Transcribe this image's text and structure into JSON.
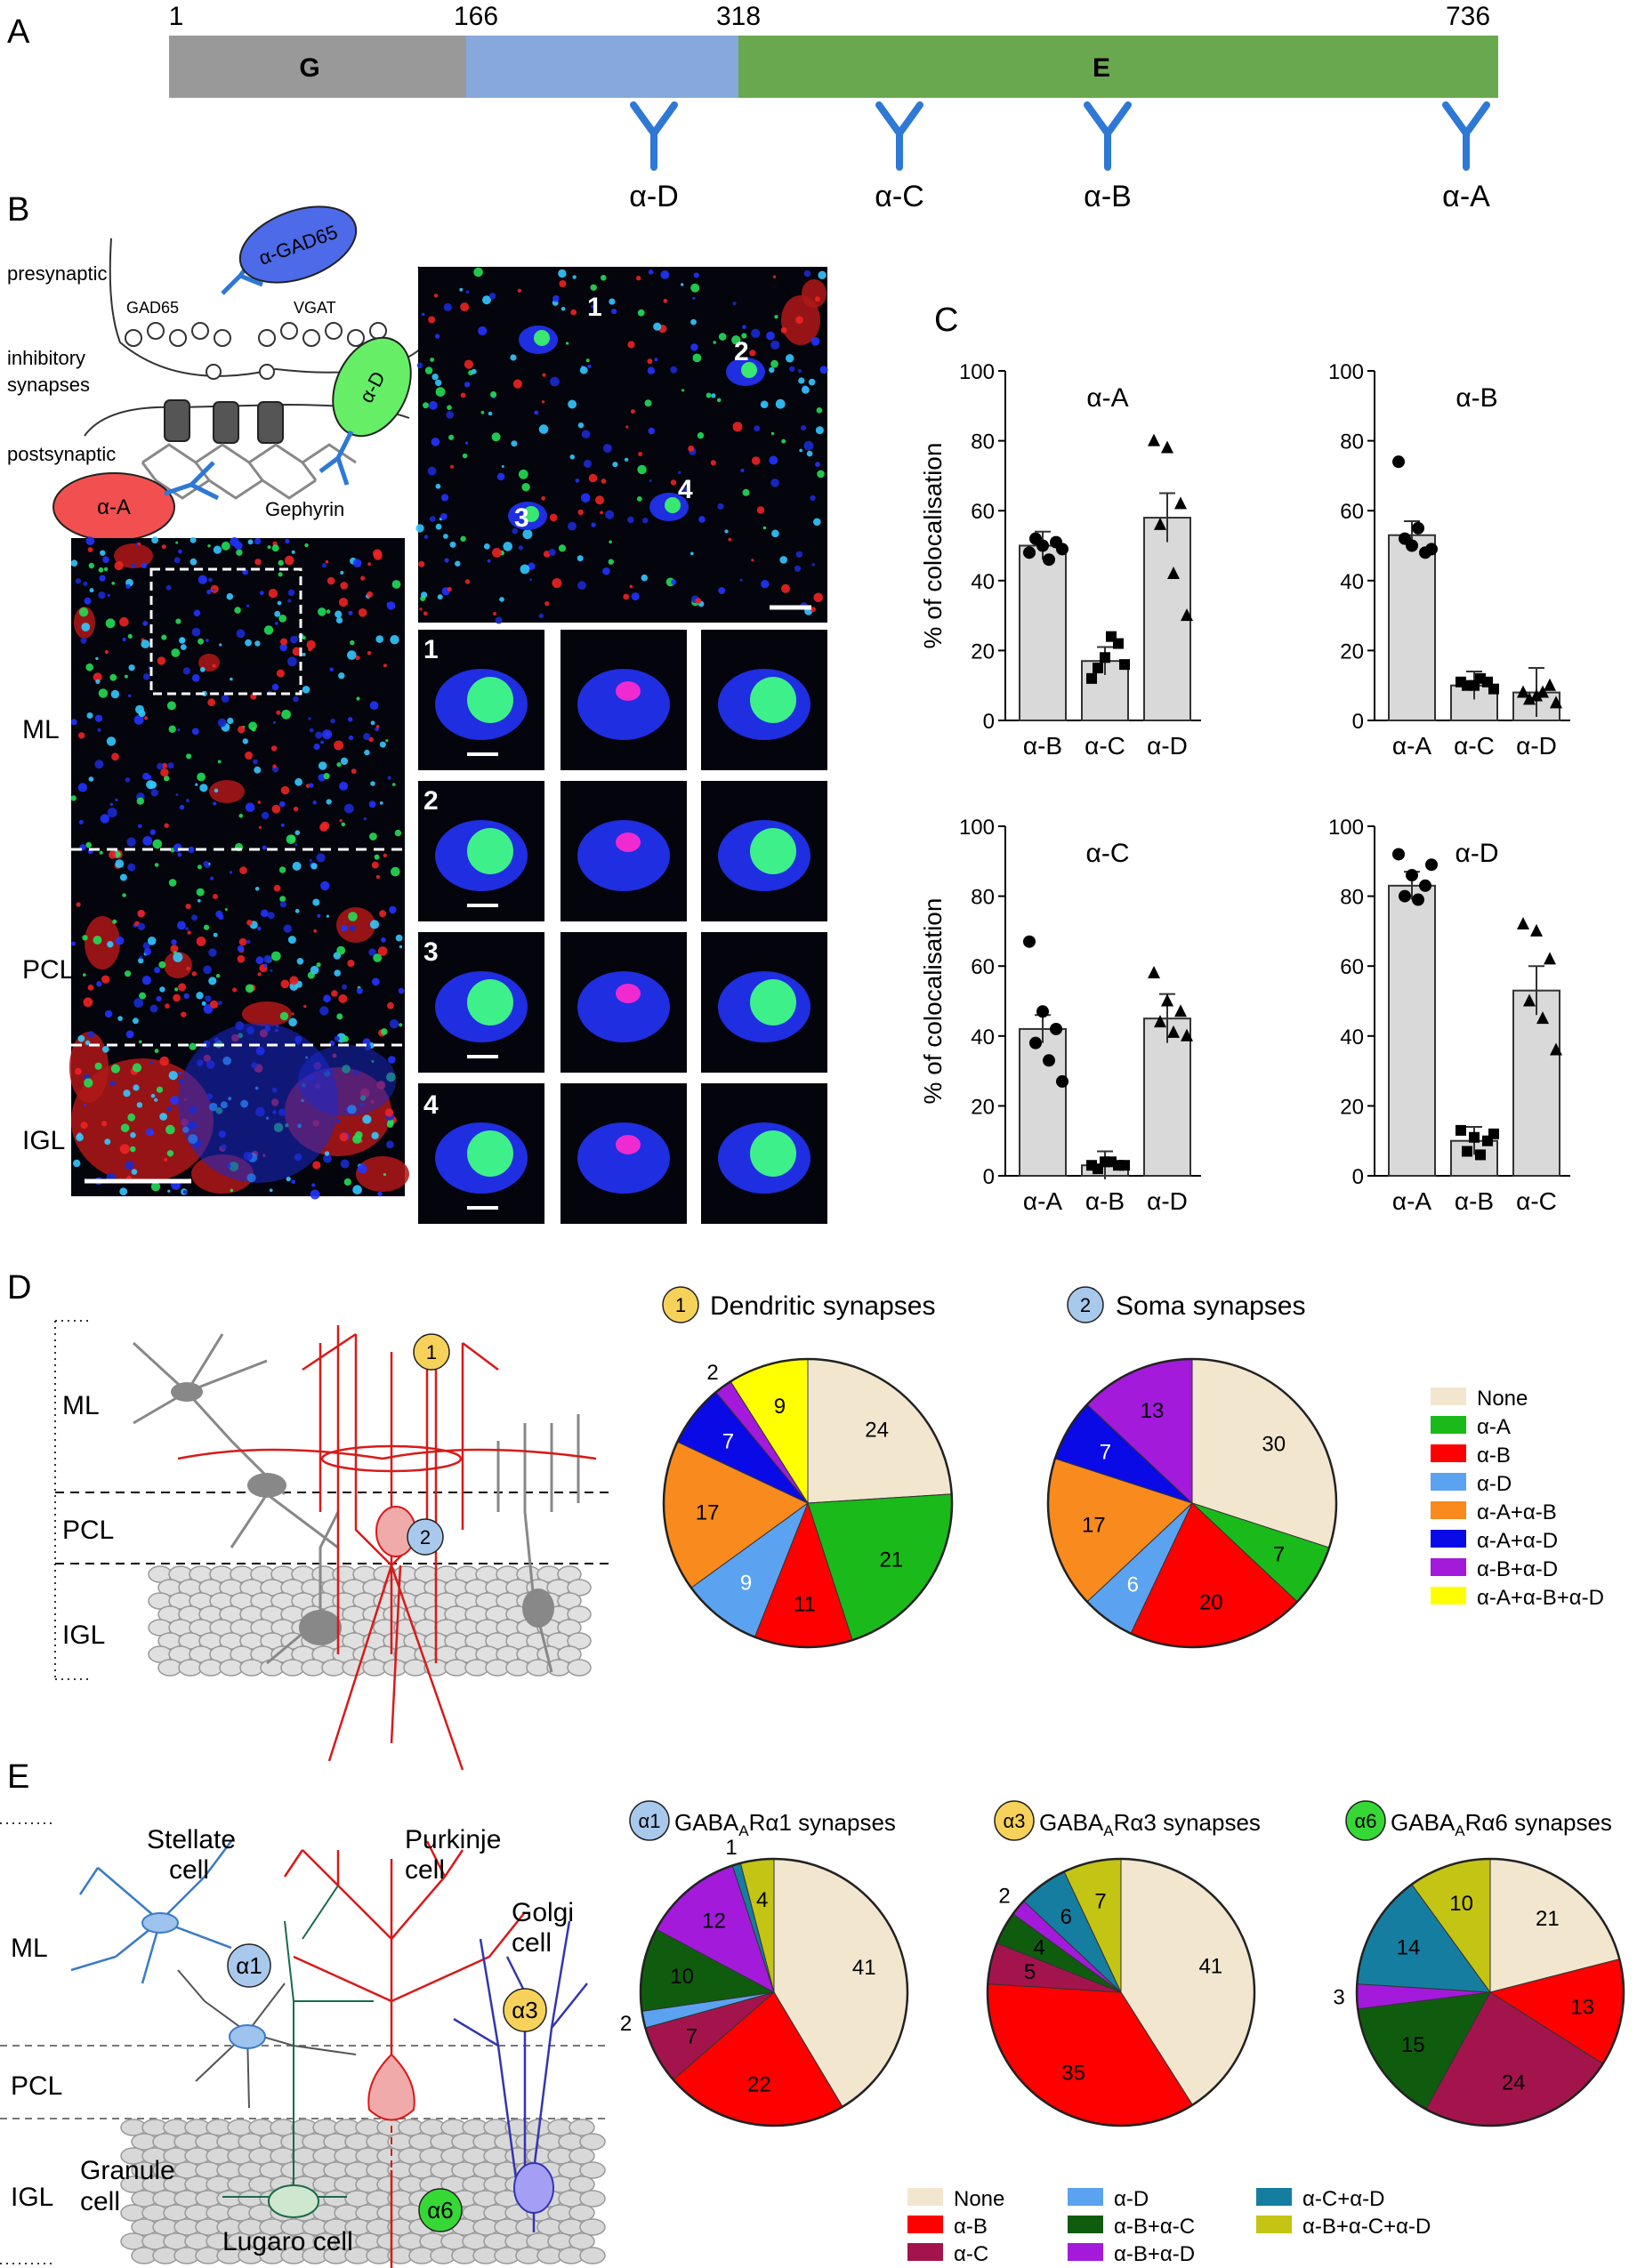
{
  "colors": {
    "domainG": "#999999",
    "domainMid": "#86a8db",
    "domainE": "#6aa84f",
    "antibody": "#2e78d6",
    "bar": "#d9d9d9",
    "none": "#f2e6cf",
    "aA": "#1aba1a",
    "aB": "#ff0000",
    "aD": "#5ba3f0",
    "aAaB": "#f98a1e",
    "aAaD": "#0a0ae6",
    "aBaD": "#a31adb",
    "aAaBaD": "#ffff00",
    "aC": "#a3144d",
    "aBaC": "#0f5c0f",
    "aCaD": "#157ea0",
    "aBaCaD": "#c4c414"
  },
  "panels": {
    "A": "A",
    "B": "B",
    "C": "C",
    "D": "D",
    "E": "E"
  },
  "panelA": {
    "positions": [
      "1",
      "166",
      "318",
      "736"
    ],
    "domains": [
      "G",
      "E"
    ],
    "antibodies": [
      "α-D",
      "α-C",
      "α-B",
      "α-A"
    ]
  },
  "panelB": {
    "schematic": {
      "presynaptic": "presynaptic",
      "inhibitory": "inhibitory",
      "synapses": "synapses",
      "postsynaptic": "postsynaptic",
      "gad65": "GAD65",
      "vgat": "VGAT",
      "alpha_gad65": "α-GAD65",
      "alpha_d": "α-D",
      "alpha_a": "α-A",
      "gephyrin": "Gephyrin"
    },
    "layers": [
      "ML",
      "PCL",
      "IGL"
    ],
    "zoom_numbers": [
      "1",
      "2",
      "3",
      "4"
    ]
  },
  "panelC": {
    "ylabel": "% of colocalisation",
    "yticks": [
      "0",
      "20",
      "40",
      "60",
      "80",
      "100"
    ]
  },
  "chart_data": [
    {
      "type": "bar",
      "title": "α-A",
      "categories": [
        "α-B",
        "α-C",
        "α-D"
      ],
      "values": [
        50,
        17,
        58
      ],
      "ylim": [
        0,
        100
      ],
      "ylabel": "% of colocalisation",
      "points": [
        [
          48,
          50,
          51,
          52,
          46,
          49
        ],
        [
          12,
          18,
          22,
          15,
          24,
          16
        ],
        [
          80,
          78,
          62,
          56,
          42,
          30
        ]
      ]
    },
    {
      "type": "bar",
      "title": "α-B",
      "categories": [
        "α-A",
        "α-C",
        "α-D"
      ],
      "values": [
        53,
        10,
        8
      ],
      "ylim": [
        0,
        100
      ],
      "ylabel": "",
      "points": [
        [
          74,
          50,
          48,
          52,
          55,
          49
        ],
        [
          11,
          10,
          11,
          10,
          12,
          9
        ],
        [
          8,
          7,
          10,
          6,
          8,
          5
        ]
      ]
    },
    {
      "type": "bar",
      "title": "α-C",
      "categories": [
        "α-A",
        "α-B",
        "α-D"
      ],
      "values": [
        42,
        3,
        45
      ],
      "ylim": [
        0,
        100
      ],
      "ylabel": "% of colocalisation",
      "points": [
        [
          67,
          47,
          42,
          38,
          33,
          27
        ],
        [
          3,
          4,
          3,
          2,
          4,
          3
        ],
        [
          58,
          50,
          47,
          44,
          41,
          40
        ]
      ]
    },
    {
      "type": "bar",
      "title": "α-D",
      "categories": [
        "α-A",
        "α-B",
        "α-C"
      ],
      "values": [
        83,
        10,
        53
      ],
      "ylim": [
        0,
        100
      ],
      "ylabel": "",
      "points": [
        [
          92,
          86,
          83,
          80,
          79,
          89
        ],
        [
          13,
          11,
          10,
          7,
          6,
          12
        ],
        [
          72,
          70,
          62,
          50,
          45,
          36
        ]
      ]
    },
    {
      "type": "pie",
      "title": "Dendritic synapses",
      "badge": "1",
      "labels": [
        "None",
        "α-A",
        "α-B",
        "α-D",
        "α-A+α-B",
        "α-A+α-D",
        "α-B+α-D",
        "α-A+α-B+α-D"
      ],
      "values": [
        24,
        21,
        11,
        9,
        17,
        7,
        2,
        9
      ]
    },
    {
      "type": "pie",
      "title": "Soma synapses",
      "badge": "2",
      "labels": [
        "None",
        "α-A",
        "α-B",
        "α-D",
        "α-A+α-B",
        "α-A+α-D",
        "α-B+α-D"
      ],
      "values": [
        30,
        7,
        20,
        6,
        17,
        7,
        13
      ]
    },
    {
      "type": "pie",
      "title": "GABAARα1 synapses",
      "badge": "α1",
      "labels": [
        "None",
        "α-B",
        "α-C",
        "α-D",
        "α-B+α-C",
        "α-B+α-D",
        "α-C+α-D",
        "α-B+α-C+α-D"
      ],
      "values": [
        41,
        22,
        7,
        2,
        10,
        12,
        1,
        4
      ]
    },
    {
      "type": "pie",
      "title": "GABAARα3 synapses",
      "badge": "α3",
      "labels": [
        "None",
        "α-B",
        "α-C",
        "α-B+α-C",
        "α-B+α-D",
        "α-C+α-D",
        "α-B+α-C+α-D"
      ],
      "values": [
        41,
        35,
        5,
        4,
        2,
        6,
        7
      ]
    },
    {
      "type": "pie",
      "title": "GABAARα6 synapses",
      "badge": "α6",
      "labels": [
        "None",
        "α-B",
        "α-C",
        "α-B+α-C",
        "α-B+α-D",
        "α-C+α-D",
        "α-B+α-C+α-D"
      ],
      "values": [
        21,
        13,
        24,
        15,
        3,
        14,
        10
      ]
    }
  ],
  "panelD": {
    "layers": [
      "ML",
      "PCL",
      "IGL"
    ],
    "badges": [
      "1",
      "2"
    ],
    "legend": [
      "None",
      "α-A",
      "α-B",
      "α-D",
      "α-A+α-B",
      "α-A+α-D",
      "α-B+α-D",
      "α-A+α-B+α-D"
    ]
  },
  "panelE": {
    "layers": [
      "ML",
      "PCL",
      "IGL"
    ],
    "cells": {
      "stellate1": "Stellate",
      "stellate2": "cell",
      "purkinje1": "Purkinje",
      "purkinje2": "cell",
      "golgi1": "Golgi",
      "golgi2": "cell",
      "granule1": "Granule",
      "granule2": "cell",
      "lugaro": "Lugaro cell"
    },
    "badges": [
      "α1",
      "α3",
      "α6"
    ],
    "pie_titles": {
      "a1_pre": "GABA",
      "a1_sub": "A",
      "a1_post": "Rα1 synapses",
      "a3_pre": "GABA",
      "a3_sub": "A",
      "a3_post": "Rα3 synapses",
      "a6_pre": "GABA",
      "a6_sub": "A",
      "a6_post": "Rα6 synapses"
    },
    "legend": [
      "None",
      "α-B",
      "α-C",
      "α-D",
      "α-B+α-C",
      "α-B+α-D",
      "α-C+α-D",
      "α-B+α-C+α-D"
    ]
  }
}
